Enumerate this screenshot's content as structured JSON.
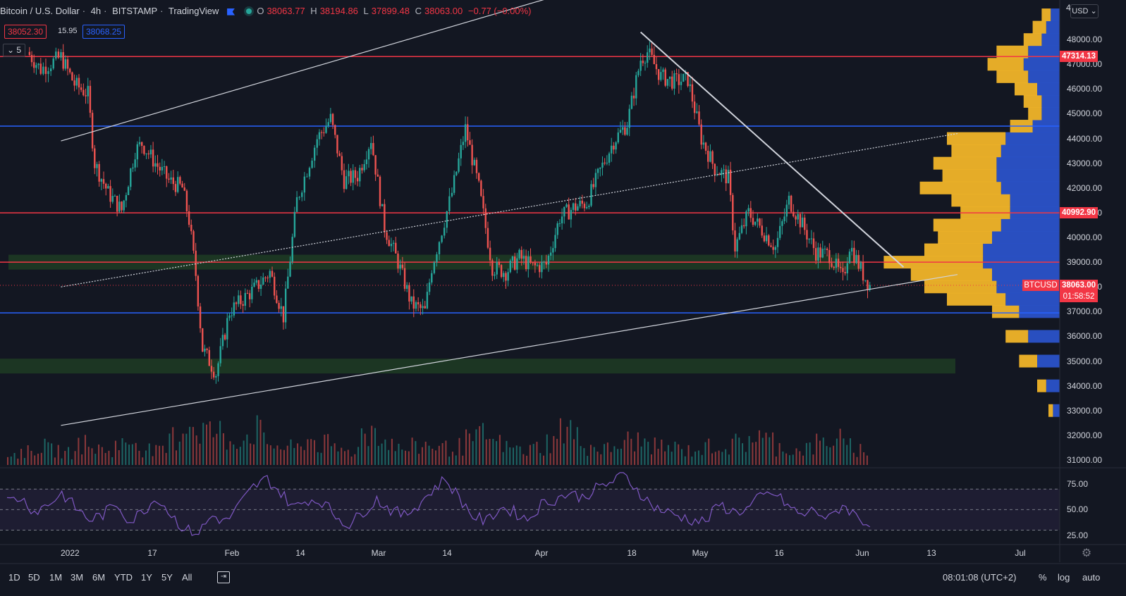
{
  "header": {
    "symbol": "Bitcoin / U.S. Dollar",
    "interval": "4h",
    "exchange": "BITSTAMP",
    "platform": "TradingView",
    "open_label": "O",
    "open": "38063.77",
    "high_label": "H",
    "high": "38194.86",
    "low_label": "L",
    "low": "37899.48",
    "close_label": "C",
    "close": "38063.00",
    "change": "−0.77 (−0.00%)",
    "bid": "38052.30",
    "spread": "15.95",
    "ask": "38068.25",
    "indicators_count": "5"
  },
  "price_axis": {
    "currency": "USD",
    "tag_47314": "47314.13",
    "tag_40992": "40992.90",
    "tag_btc_symbol": "BTCUSD",
    "tag_btc_price": "38063.00",
    "tag_btc_countdown": "01:58:52",
    "top_partial": "4"
  },
  "bottom_bar": {
    "timeframes": [
      "1D",
      "5D",
      "1M",
      "3M",
      "6M",
      "YTD",
      "1Y",
      "5Y",
      "All"
    ],
    "time": "08:01:08 (UTC+2)",
    "percent": "%",
    "log": "log",
    "auto": "auto"
  },
  "colors": {
    "background": "#131722",
    "up": "#26a69a",
    "down": "#ef5350",
    "red_line": "#f23645",
    "blue_line": "#2962ff",
    "zone": "#1e3a24",
    "vp_up": "#f0b429",
    "vp_down": "#2a52c9",
    "rsi": "#7e57c2"
  },
  "chart_data": [
    {
      "type": "candlestick",
      "title": "Bitcoin / U.S. Dollar · 4h · BITSTAMP",
      "ylim": [
        30800,
        49600
      ],
      "y_ticks": [
        31000,
        32000,
        33000,
        34000,
        35000,
        36000,
        37000,
        38000,
        39000,
        40000,
        41000,
        42000,
        43000,
        44000,
        45000,
        46000,
        47000,
        48000
      ],
      "x_ticks": [
        "2022",
        "17",
        "Feb",
        "14",
        "Mar",
        "14",
        "Apr",
        "18",
        "May",
        "16",
        "Jun",
        "13",
        "Jul"
      ],
      "price_path": [
        {
          "x": "Dec 27",
          "y": 47500
        },
        {
          "x": "Dec 29",
          "y": 46800
        },
        {
          "x": "Jan 1",
          "y": 47300
        },
        {
          "x": "Jan 3",
          "y": 46200
        },
        {
          "x": "Jan 5",
          "y": 45800
        },
        {
          "x": "Jan 6",
          "y": 43000
        },
        {
          "x": "Jan 8",
          "y": 41800
        },
        {
          "x": "Jan 10",
          "y": 41100
        },
        {
          "x": "Jan 12",
          "y": 43500
        },
        {
          "x": "Jan 13",
          "y": 43800
        },
        {
          "x": "Jan 15",
          "y": 43000
        },
        {
          "x": "Jan 17",
          "y": 42300
        },
        {
          "x": "Jan 19",
          "y": 42000
        },
        {
          "x": "Jan 20",
          "y": 40700
        },
        {
          "x": "Jan 21",
          "y": 38500
        },
        {
          "x": "Jan 22",
          "y": 35500
        },
        {
          "x": "Jan 24",
          "y": 34500
        },
        {
          "x": "Jan 26",
          "y": 37000
        },
        {
          "x": "Jan 28",
          "y": 37500
        },
        {
          "x": "Jan 30",
          "y": 38000
        },
        {
          "x": "Feb 1",
          "y": 38600
        },
        {
          "x": "Feb 3",
          "y": 36800
        },
        {
          "x": "Feb 5",
          "y": 41500
        },
        {
          "x": "Feb 8",
          "y": 44000
        },
        {
          "x": "Feb 10",
          "y": 44800
        },
        {
          "x": "Feb 12",
          "y": 42300
        },
        {
          "x": "Feb 14",
          "y": 42500
        },
        {
          "x": "Feb 16",
          "y": 44000
        },
        {
          "x": "Feb 18",
          "y": 40400
        },
        {
          "x": "Feb 20",
          "y": 39000
        },
        {
          "x": "Feb 22",
          "y": 37300
        },
        {
          "x": "Feb 24",
          "y": 37000
        },
        {
          "x": "Feb 25",
          "y": 38800
        },
        {
          "x": "Feb 28",
          "y": 41800
        },
        {
          "x": "Mar 2",
          "y": 44400
        },
        {
          "x": "Mar 4",
          "y": 42000
        },
        {
          "x": "Mar 6",
          "y": 38800
        },
        {
          "x": "Mar 8",
          "y": 38600
        },
        {
          "x": "Mar 10",
          "y": 39200
        },
        {
          "x": "Mar 12",
          "y": 38800
        },
        {
          "x": "Mar 14",
          "y": 38900
        },
        {
          "x": "Mar 16",
          "y": 40800
        },
        {
          "x": "Mar 18",
          "y": 41200
        },
        {
          "x": "Mar 20",
          "y": 41400
        },
        {
          "x": "Mar 22",
          "y": 42700
        },
        {
          "x": "Mar 24",
          "y": 43900
        },
        {
          "x": "Mar 26",
          "y": 44600
        },
        {
          "x": "Mar 28",
          "y": 47200
        },
        {
          "x": "Mar 29",
          "y": 47500
        },
        {
          "x": "Mar 31",
          "y": 46500
        },
        {
          "x": "Apr 2",
          "y": 46300
        },
        {
          "x": "Apr 4",
          "y": 46400
        },
        {
          "x": "Apr 6",
          "y": 44000
        },
        {
          "x": "Apr 8",
          "y": 42800
        },
        {
          "x": "Apr 10",
          "y": 42400
        },
        {
          "x": "Apr 11",
          "y": 39600
        },
        {
          "x": "Apr 13",
          "y": 41000
        },
        {
          "x": "Apr 15",
          "y": 40300
        },
        {
          "x": "Apr 17",
          "y": 39600
        },
        {
          "x": "Apr 19",
          "y": 41500
        },
        {
          "x": "Apr 21",
          "y": 40500
        },
        {
          "x": "Apr 23",
          "y": 39400
        },
        {
          "x": "Apr 25",
          "y": 39300
        },
        {
          "x": "Apr 27",
          "y": 38300
        },
        {
          "x": "Apr 28",
          "y": 39700
        },
        {
          "x": "Apr 30",
          "y": 38500
        },
        {
          "x": "May 1",
          "y": 38063
        }
      ],
      "horizontal_levels": [
        {
          "price": 47314.13,
          "color": "#f23645"
        },
        {
          "price": 44500,
          "color": "#2962ff"
        },
        {
          "price": 40992.9,
          "color": "#f23645"
        },
        {
          "price": 39000,
          "color": "#f23645"
        },
        {
          "price": 36950,
          "color": "#2962ff"
        }
      ],
      "zones": [
        {
          "from": 38700,
          "to": 39300
        },
        {
          "from": 34500,
          "to": 35100
        }
      ],
      "trendlines": [
        {
          "from": {
            "x": "Jan 1",
            "y": 43900
          },
          "to": {
            "x": "Jul 3",
            "y": 58500
          }
        },
        {
          "from": {
            "x": "Jan 1",
            "y": 38000
          },
          "to": {
            "x": "May 14",
            "y": 44200
          }
        },
        {
          "from": {
            "x": "Jan 1",
            "y": 32400
          },
          "to": {
            "x": "May 14",
            "y": 38500
          }
        },
        {
          "from": {
            "x": "Mar 28",
            "y": 48300
          },
          "to": {
            "x": "May 6",
            "y": 38800
          }
        }
      ],
      "last_price": 38063.0
    },
    {
      "type": "line",
      "title": "RSI",
      "ylim": [
        18,
        88
      ],
      "y_ticks": [
        25,
        50,
        75
      ],
      "bands": [
        30,
        70
      ],
      "values": [
        58,
        62,
        48,
        55,
        66,
        52,
        40,
        45,
        56,
        38,
        50,
        62,
        45,
        30,
        28,
        44,
        38,
        55,
        72,
        80,
        66,
        52,
        60,
        58,
        44,
        35,
        48,
        60,
        50,
        44,
        55,
        68,
        80,
        62,
        44,
        38,
        52,
        48,
        40,
        55,
        60,
        66,
        62,
        70,
        76,
        84,
        70,
        55,
        48,
        44,
        40,
        38,
        55,
        48,
        50,
        62,
        66,
        54,
        44,
        50,
        40,
        55,
        44,
        35
      ]
    },
    {
      "type": "bar",
      "title": "Volume",
      "values": [
        18,
        22,
        30,
        25,
        20,
        35,
        28,
        24,
        33,
        40,
        26,
        22,
        45,
        70,
        60,
        55,
        40,
        48,
        58,
        36,
        30,
        28,
        42,
        34,
        26,
        22,
        50,
        60,
        38,
        26,
        30,
        34,
        28,
        30,
        40,
        48,
        36,
        28,
        24,
        30,
        38,
        60,
        44,
        30,
        26,
        32,
        40,
        36,
        30,
        28,
        24,
        26,
        34,
        30,
        36,
        48,
        40,
        30,
        24,
        28,
        36,
        44,
        30,
        26
      ]
    },
    {
      "type": "bar",
      "title": "Volume Profile",
      "ylim": [
        30800,
        49600
      ],
      "levels": [
        33000,
        34000,
        35000,
        36000,
        37000,
        37500,
        38000,
        38500,
        39000,
        39500,
        40000,
        40500,
        41000,
        41500,
        42000,
        42500,
        43000,
        43500,
        44000,
        44500,
        45000,
        45500,
        46000,
        46500,
        47000,
        47500,
        48000,
        48500,
        49000
      ],
      "up_values": [
        2,
        4,
        8,
        10,
        12,
        26,
        32,
        36,
        44,
        26,
        24,
        30,
        22,
        26,
        36,
        24,
        28,
        22,
        26,
        10,
        6,
        8,
        10,
        14,
        16,
        14,
        8,
        6,
        4
      ],
      "down_values": [
        3,
        6,
        10,
        14,
        18,
        24,
        28,
        30,
        34,
        34,
        30,
        26,
        22,
        22,
        26,
        28,
        28,
        26,
        24,
        12,
        8,
        8,
        10,
        14,
        16,
        14,
        8,
        6,
        4
      ]
    }
  ]
}
